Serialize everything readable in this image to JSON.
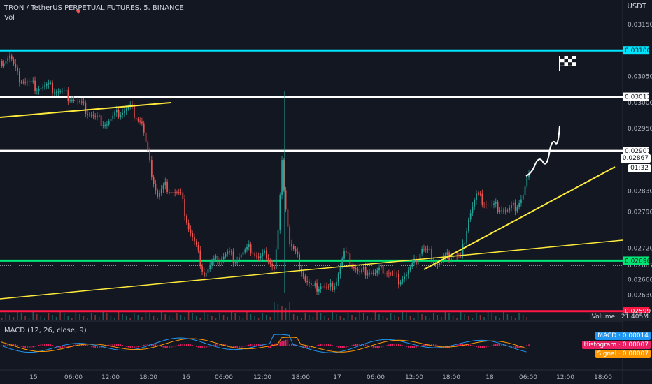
{
  "header": {
    "title": "TRON / TetherUS PERPETUAL FUTURES, 5, BINANCE",
    "vol_label": "Vol",
    "currency": "USDT",
    "macd_label": "MACD (12, 26, close, 9)"
  },
  "colors": {
    "background": "#131722",
    "up": "#26a69a",
    "down": "#ef5350",
    "cyan_line": "#00e5ff",
    "white_line": "#ffffff",
    "green_line": "#00e676",
    "red_line": "#ff1744",
    "trend": "#ffeb3b",
    "macd": "#2196f3",
    "signal": "#ff9800",
    "histogram": "#e91e63"
  },
  "tags": {
    "last_price": "0.02867",
    "countdown": "01:32",
    "volume": "Volume · 21.405M",
    "macd": "MACD · 0.00014",
    "histogram": "Histogram · 0.00007",
    "signal": "Signal · 0.00007"
  },
  "chart_data": {
    "type": "candlestick",
    "title": "TRON / TetherUS PERPETUAL FUTURES, 5, BINANCE",
    "ylim": [
      0.026,
      0.0317
    ],
    "y_ticks": [
      "0.03150",
      "0.03050",
      "0.03000",
      "0.02950",
      "0.02830",
      "0.02790",
      "0.02720",
      "0.02687",
      "0.02660",
      "0.02630"
    ],
    "x_ticks": [
      "15",
      "06:00",
      "12:00",
      "18:00",
      "16",
      "06:00",
      "12:00",
      "18:00",
      "17",
      "06:00",
      "12:00",
      "18:00",
      "18",
      "06:00",
      "12:00",
      "18:00"
    ],
    "horizontal_levels": [
      {
        "label": "0.03100",
        "value": 0.031,
        "color": "#00e5ff"
      },
      {
        "label": "0.03011",
        "value": 0.03011,
        "color": "#ffffff"
      },
      {
        "label": "0.02907",
        "value": 0.02907,
        "color": "#ffffff"
      },
      {
        "label": "0.02696",
        "value": 0.02696,
        "color": "#00e676"
      },
      {
        "label": "0.02599",
        "value": 0.02599,
        "color": "#ff1744"
      }
    ],
    "price_path": [
      [
        0,
        0.0308
      ],
      [
        4,
        0.0309
      ],
      [
        8,
        0.0305
      ],
      [
        12,
        0.0304
      ],
      [
        18,
        0.0303
      ],
      [
        24,
        0.0303
      ],
      [
        30,
        0.0302
      ],
      [
        36,
        0.0301
      ],
      [
        42,
        0.0299
      ],
      [
        48,
        0.0297
      ],
      [
        54,
        0.0296
      ],
      [
        60,
        0.0298
      ],
      [
        66,
        0.0299
      ],
      [
        72,
        0.0296
      ],
      [
        76,
        0.0288
      ],
      [
        80,
        0.0282
      ],
      [
        84,
        0.0284
      ],
      [
        88,
        0.0283
      ],
      [
        92,
        0.0282
      ],
      [
        96,
        0.0276
      ],
      [
        100,
        0.0272
      ],
      [
        104,
        0.0267
      ],
      [
        108,
        0.0269
      ],
      [
        112,
        0.027
      ],
      [
        116,
        0.0271
      ],
      [
        120,
        0.027
      ],
      [
        124,
        0.0271
      ],
      [
        128,
        0.0272
      ],
      [
        132,
        0.027
      ],
      [
        136,
        0.0271
      ],
      [
        140,
        0.0268
      ],
      [
        142,
        0.0275
      ],
      [
        144,
        0.0288
      ],
      [
        146,
        0.028
      ],
      [
        148,
        0.0273
      ],
      [
        152,
        0.027
      ],
      [
        156,
        0.0266
      ],
      [
        160,
        0.0264
      ],
      [
        164,
        0.0265
      ],
      [
        168,
        0.0264
      ],
      [
        172,
        0.0266
      ],
      [
        176,
        0.0271
      ],
      [
        180,
        0.0269
      ],
      [
        184,
        0.0267
      ],
      [
        188,
        0.0268
      ],
      [
        192,
        0.0267
      ],
      [
        196,
        0.0268
      ],
      [
        200,
        0.0267
      ],
      [
        204,
        0.0266
      ],
      [
        208,
        0.0267
      ],
      [
        212,
        0.0269
      ],
      [
        216,
        0.0272
      ],
      [
        220,
        0.0271
      ],
      [
        224,
        0.0269
      ],
      [
        228,
        0.027
      ],
      [
        232,
        0.0271
      ],
      [
        236,
        0.027
      ],
      [
        240,
        0.0278
      ],
      [
        244,
        0.0282
      ],
      [
        248,
        0.0281
      ],
      [
        252,
        0.028
      ],
      [
        256,
        0.028
      ],
      [
        260,
        0.0279
      ],
      [
        264,
        0.028
      ],
      [
        268,
        0.0282
      ],
      [
        270,
        0.0285
      ],
      [
        272,
        0.0286
      ]
    ]
  }
}
